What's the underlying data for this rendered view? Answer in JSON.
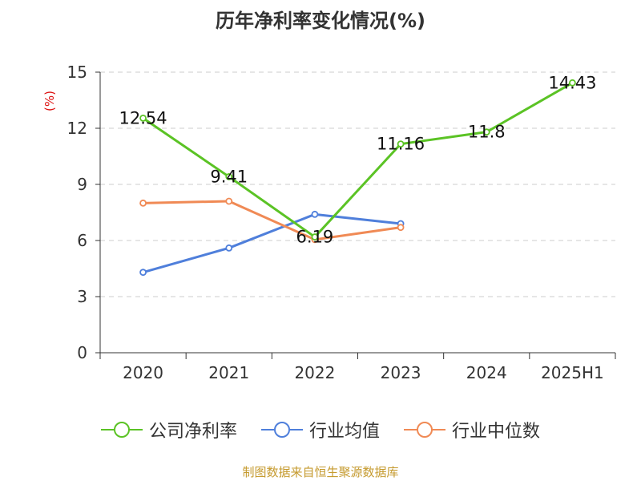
{
  "chart_data": {
    "type": "line",
    "title": "历年净利率变化情况(%)",
    "ylabel": "(%)",
    "xlabel": "",
    "ylim": [
      0,
      15
    ],
    "yticks": [
      0,
      3,
      6,
      9,
      12,
      15
    ],
    "grid": true,
    "legend_position": "bottom",
    "categories": [
      "2020",
      "2021",
      "2022",
      "2023",
      "2024",
      "2025H1"
    ],
    "series": [
      {
        "name": "公司净利率",
        "color": "#5bc325",
        "values": [
          12.54,
          9.41,
          6.19,
          11.16,
          11.8,
          14.43
        ],
        "labels": [
          "12.54",
          "9.41",
          "6.19",
          "11.16",
          "11.8",
          "14.43"
        ]
      },
      {
        "name": "行业均值",
        "color": "#4f7fdb",
        "values": [
          4.3,
          5.6,
          7.4,
          6.9,
          null,
          null
        ]
      },
      {
        "name": "行业中位数",
        "color": "#f08a55",
        "values": [
          8.0,
          8.1,
          6.05,
          6.7,
          null,
          null
        ]
      }
    ]
  },
  "ylabel_color": "#dd1111",
  "source_note": "制图数据来自恒生聚源数据库"
}
